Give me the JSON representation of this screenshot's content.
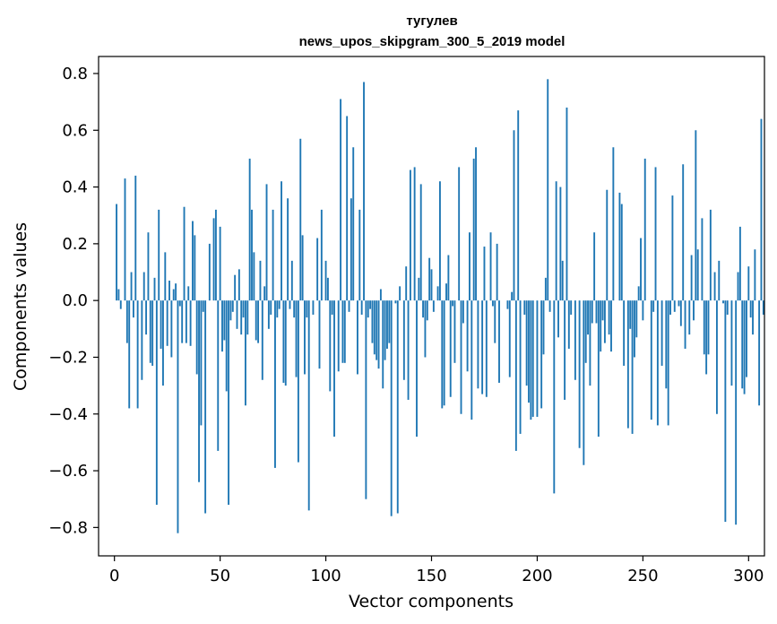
{
  "chart_data": {
    "type": "bar",
    "title_lines": [
      "тугулев",
      "news_upos_skipgram_300_5_2019 model"
    ],
    "xlabel": "Vector components",
    "ylabel": "Components values",
    "xlim": [
      -7.5,
      307.5
    ],
    "ylim": [
      -0.9,
      0.86
    ],
    "xticks": [
      0,
      50,
      100,
      150,
      200,
      250,
      300
    ],
    "yticks": [
      0.8,
      0.6,
      0.4,
      0.2,
      0.0,
      -0.2,
      -0.4,
      -0.6,
      -0.8
    ],
    "ytick_labels": [
      "0.8",
      "0.6",
      "0.4",
      "0.2",
      "0.0",
      "−0.2",
      "−0.4",
      "−0.6",
      "−0.8"
    ],
    "xtick_labels": [
      "0",
      "50",
      "100",
      "150",
      "200",
      "250",
      "300"
    ],
    "bar_color": "#1f77b4",
    "values": [
      0.0,
      0.34,
      0.04,
      -0.03,
      0.0,
      0.43,
      -0.15,
      -0.38,
      0.1,
      -0.06,
      0.44,
      -0.38,
      0.0,
      -0.28,
      0.1,
      -0.12,
      0.24,
      -0.22,
      -0.23,
      0.08,
      -0.72,
      0.32,
      -0.17,
      -0.3,
      0.17,
      -0.16,
      0.07,
      -0.2,
      0.04,
      0.06,
      -0.82,
      -0.02,
      -0.15,
      0.33,
      -0.15,
      0.05,
      -0.16,
      0.28,
      0.23,
      -0.26,
      -0.64,
      -0.44,
      -0.04,
      -0.75,
      0.0,
      0.2,
      0.0,
      0.29,
      0.32,
      -0.53,
      0.26,
      -0.18,
      -0.14,
      -0.32,
      -0.72,
      -0.07,
      -0.04,
      0.09,
      -0.1,
      0.11,
      -0.12,
      -0.06,
      -0.37,
      -0.12,
      0.5,
      0.32,
      0.17,
      -0.14,
      -0.15,
      0.14,
      -0.28,
      0.05,
      0.41,
      -0.1,
      -0.05,
      0.32,
      -0.59,
      -0.06,
      -0.03,
      0.42,
      -0.29,
      -0.3,
      0.36,
      -0.03,
      0.14,
      -0.06,
      -0.27,
      -0.57,
      0.57,
      0.23,
      -0.26,
      -0.06,
      -0.74,
      0.0,
      -0.05,
      0.0,
      0.22,
      -0.24,
      0.32,
      0.0,
      0.14,
      0.08,
      -0.32,
      -0.05,
      -0.48,
      0.0,
      -0.25,
      0.71,
      -0.22,
      -0.22,
      0.65,
      -0.04,
      0.36,
      0.54,
      0.0,
      -0.26,
      0.32,
      -0.05,
      0.77,
      -0.7,
      -0.06,
      -0.03,
      -0.15,
      -0.19,
      -0.21,
      -0.24,
      0.04,
      -0.31,
      -0.21,
      -0.17,
      -0.15,
      -0.76,
      0.0,
      -0.01,
      -0.75,
      0.05,
      0.0,
      -0.28,
      0.12,
      -0.35,
      0.46,
      0.0,
      0.47,
      -0.48,
      0.08,
      0.41,
      -0.06,
      -0.2,
      -0.07,
      0.15,
      0.11,
      -0.04,
      0.0,
      0.05,
      0.42,
      -0.38,
      -0.37,
      0.06,
      0.16,
      -0.34,
      -0.02,
      -0.22,
      0.0,
      0.47,
      -0.4,
      -0.08,
      0.0,
      -0.25,
      0.24,
      -0.42,
      0.5,
      0.54,
      -0.31,
      0.0,
      -0.33,
      0.19,
      -0.34,
      0.0,
      0.24,
      -0.02,
      -0.15,
      0.2,
      -0.29,
      0.0,
      0.0,
      0.0,
      -0.03,
      -0.27,
      0.03,
      0.6,
      -0.53,
      0.67,
      -0.47,
      0.0,
      -0.05,
      -0.3,
      -0.36,
      -0.42,
      -0.41,
      0.0,
      -0.41,
      0.0,
      -0.38,
      -0.19,
      0.08,
      0.78,
      -0.04,
      0.0,
      -0.68,
      0.42,
      -0.13,
      0.4,
      0.14,
      -0.35,
      0.68,
      -0.17,
      -0.05,
      0.0,
      -0.28,
      0.0,
      -0.52,
      0.0,
      -0.58,
      -0.22,
      -0.12,
      -0.3,
      -0.08,
      0.24,
      -0.08,
      -0.48,
      -0.18,
      -0.07,
      -0.15,
      0.39,
      -0.12,
      -0.18,
      0.54,
      0.0,
      0.0,
      0.38,
      0.34,
      -0.23,
      0.0,
      -0.45,
      -0.1,
      -0.47,
      -0.2,
      -0.13,
      0.05,
      0.22,
      -0.07,
      0.5,
      0.0,
      0.0,
      -0.42,
      -0.04,
      0.47,
      -0.44,
      0.0,
      -0.23,
      0.0,
      -0.31,
      -0.44,
      -0.05,
      0.37,
      -0.04,
      0.0,
      -0.02,
      -0.09,
      0.48,
      -0.17,
      0.0,
      -0.12,
      0.16,
      -0.07,
      0.6,
      0.18,
      0.0,
      0.29,
      -0.19,
      -0.26,
      -0.19,
      0.32,
      0.0,
      0.1,
      -0.4,
      0.14,
      0.0,
      -0.01,
      -0.78,
      -0.05,
      0.0,
      -0.3,
      0.0,
      -0.79,
      0.1,
      0.26,
      -0.31,
      -0.33,
      -0.27,
      0.12,
      -0.06,
      -0.12,
      0.18,
      0.0,
      -0.37,
      0.64,
      -0.05
    ]
  }
}
